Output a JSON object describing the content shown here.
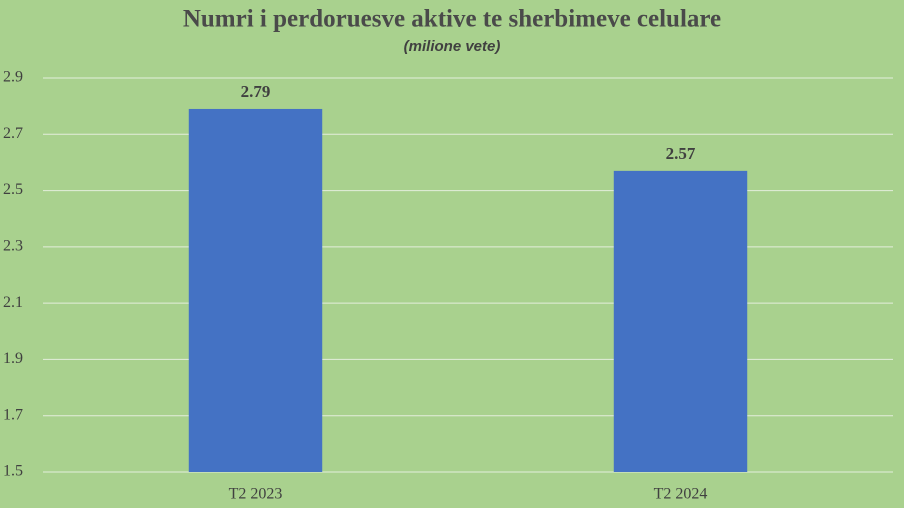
{
  "chart_data": {
    "type": "bar",
    "title": "Numri i perdoruesve aktive te sherbimeve celulare",
    "subtitle": "(milione vete)",
    "categories": [
      "T2 2023",
      "T2 2024"
    ],
    "values": [
      2.79,
      2.57
    ],
    "color": "#4472c4",
    "ylim": [
      1.5,
      2.9
    ],
    "yticks": [
      1.5,
      1.7,
      1.9,
      2.1,
      2.3,
      2.5,
      2.7,
      2.9
    ],
    "grid": true
  }
}
